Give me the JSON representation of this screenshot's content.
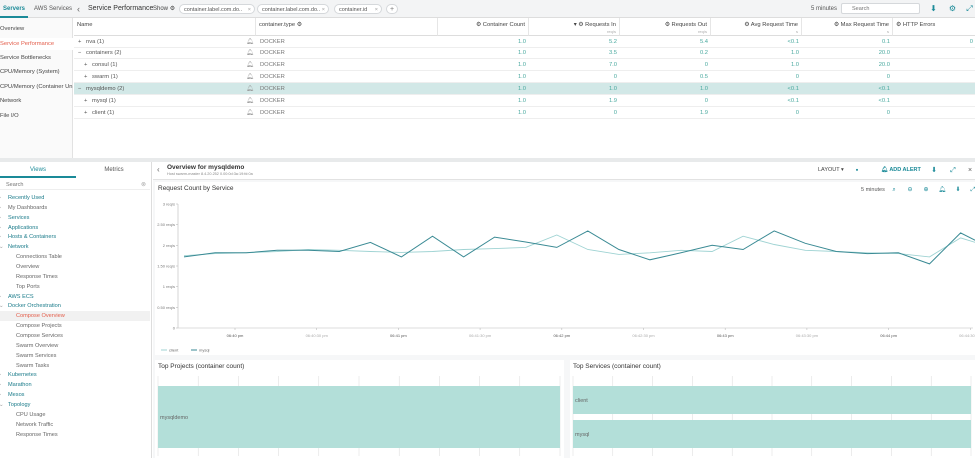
{
  "top": {
    "tabs": [
      {
        "label": "Servers"
      },
      {
        "label": "AWS Services"
      }
    ],
    "title": "Service Performance",
    "show_label": "Show",
    "chips": [
      {
        "label": "container.label.com.do.."
      },
      {
        "label": "container.label.com.do.."
      },
      {
        "label": "container.id"
      }
    ],
    "add_chip": "+",
    "time_range": "5 minutes",
    "search_placeholder": "Search"
  },
  "left_nav": {
    "items": [
      {
        "label": "Overview"
      },
      {
        "label": "Service Performance"
      },
      {
        "label": "Service Bottlenecks"
      },
      {
        "label": "CPU/Memory (System)"
      },
      {
        "label": "CPU/Memory (Container Un..."
      },
      {
        "label": "Network"
      },
      {
        "label": "File I/O"
      }
    ]
  },
  "table": {
    "columns": [
      {
        "label": "Name",
        "unit": ""
      },
      {
        "label": "container.type",
        "unit": ""
      },
      {
        "label": "Container Count",
        "unit": ""
      },
      {
        "label": "Requests In",
        "unit": "req/s"
      },
      {
        "label": "Requests Out",
        "unit": "req/s"
      },
      {
        "label": "Avg Request Time",
        "unit": "s"
      },
      {
        "label": "Max Request Time",
        "unit": "s"
      },
      {
        "label": "HTTP Errors",
        "unit": ""
      }
    ],
    "rows": [
      {
        "toggle": "+",
        "name": "nva (1)",
        "type": "DOCKER",
        "count": "1.0",
        "req_in": "5.2",
        "req_out": "5.4",
        "avg": "<0.1",
        "max": "0.1",
        "errors": "0"
      },
      {
        "toggle": "−",
        "name": "containers (2)",
        "type": "DOCKER",
        "count": "1.0",
        "req_in": "3.5",
        "req_out": "0.2",
        "avg": "1.0",
        "max": "20.0",
        "errors": ""
      },
      {
        "toggle": "+",
        "name": "consul (1)",
        "type": "DOCKER",
        "count": "1.0",
        "req_in": "7.0",
        "req_out": "0",
        "avg": "1.0",
        "max": "20.0",
        "errors": ""
      },
      {
        "toggle": "+",
        "name": "swarm (1)",
        "type": "DOCKER",
        "count": "1.0",
        "req_in": "0",
        "req_out": "0.5",
        "avg": "0",
        "max": "0",
        "errors": ""
      },
      {
        "toggle": "−",
        "name": "mysqldemo (2)",
        "type": "DOCKER",
        "count": "1.0",
        "req_in": "1.0",
        "req_out": "1.0",
        "avg": "<0.1",
        "max": "<0.1",
        "errors": ""
      },
      {
        "toggle": "+",
        "name": "mysql (1)",
        "type": "DOCKER",
        "count": "1.0",
        "req_in": "1.9",
        "req_out": "0",
        "avg": "<0.1",
        "max": "<0.1",
        "errors": ""
      },
      {
        "toggle": "+",
        "name": "client (1)",
        "type": "DOCKER",
        "count": "1.0",
        "req_in": "0",
        "req_out": "1.9",
        "avg": "0",
        "max": "0",
        "errors": ""
      }
    ]
  },
  "side_panel": {
    "tabs": [
      {
        "label": "Views"
      },
      {
        "label": "Metrics"
      }
    ],
    "search_placeholder": "Search",
    "tree": [
      {
        "label": "Recently Used",
        "level": "grp"
      },
      {
        "label": "My Dashboards",
        "level": "plain"
      },
      {
        "label": "Services",
        "level": "grp"
      },
      {
        "label": "Applications",
        "level": "grp"
      },
      {
        "label": "Hosts & Containers",
        "level": "grp"
      },
      {
        "label": "Network",
        "level": "grp"
      },
      {
        "label": "Connections Table",
        "level": "child"
      },
      {
        "label": "Overview",
        "level": "child"
      },
      {
        "label": "Response Times",
        "level": "child"
      },
      {
        "label": "Top Ports",
        "level": "child"
      },
      {
        "label": "AWS ECS",
        "level": "grp"
      },
      {
        "label": "Docker Orchestration",
        "level": "grp"
      },
      {
        "label": "Compose Overview",
        "level": "active"
      },
      {
        "label": "Compose Projects",
        "level": "child"
      },
      {
        "label": "Compose Services",
        "level": "child"
      },
      {
        "label": "Swarm Overview",
        "level": "child"
      },
      {
        "label": "Swarm Services",
        "level": "child"
      },
      {
        "label": "Swarm Tasks",
        "level": "child"
      },
      {
        "label": "Kubernetes",
        "level": "grp"
      },
      {
        "label": "Marathon",
        "level": "grp"
      },
      {
        "label": "Mesos",
        "level": "grp"
      },
      {
        "label": "Topology",
        "level": "grp"
      },
      {
        "label": "CPU Usage",
        "level": "child"
      },
      {
        "label": "Network Traffic",
        "level": "child"
      },
      {
        "label": "Response Times",
        "level": "child"
      }
    ]
  },
  "overview": {
    "title": "Overview for mysqldemo",
    "subtitle": "Host swarm-master 8.4.20.252 0.00:0d:3a:19:fd:0a",
    "layout_label": "LAYOUT",
    "add_alert_label": "ADD ALERT"
  },
  "chart_data": [
    {
      "type": "line",
      "title": "Request Count by Service",
      "time_range": "5 minutes",
      "ylim": [
        0,
        3
      ],
      "yticks": [
        {
          "v": 0,
          "label": "0"
        },
        {
          "v": 0.5,
          "label": "0.50 req/s"
        },
        {
          "v": 1,
          "label": "1 req/s"
        },
        {
          "v": 1.5,
          "label": "1.50 req/s"
        },
        {
          "v": 2,
          "label": "2 req/s"
        },
        {
          "v": 2.5,
          "label": "2.50 req/s"
        },
        {
          "v": 3,
          "label": "3 req/s"
        }
      ],
      "x": [
        "06:40 pm",
        "06:40:10",
        "06:40:20",
        "06:40:30",
        "06:40:40",
        "06:40:50",
        "06:41 pm",
        "06:41:10",
        "06:41:20",
        "06:41:30",
        "06:41:40",
        "06:41:50",
        "06:42 pm",
        "06:42:10",
        "06:42:20",
        "06:42:30",
        "06:42:40",
        "06:42:50",
        "06:43 pm",
        "06:43:10",
        "06:43:20",
        "06:43:30",
        "06:43:40",
        "06:43:50",
        "06:44 pm",
        "06:44:10",
        "06:44:20"
      ],
      "xticks": [
        "06:40 pm",
        "06:40:30 pm",
        "06:41 pm",
        "06:41:30 pm",
        "06:42 pm",
        "06:42:30 pm",
        "06:43 pm",
        "06:43:30 pm",
        "06:44 pm",
        "06:44:30 pm"
      ],
      "series": [
        {
          "name": "client",
          "color": "#9fd3d3",
          "values": [
            1.75,
            1.8,
            1.82,
            1.85,
            1.9,
            1.88,
            1.85,
            1.83,
            1.85,
            1.9,
            1.92,
            1.95,
            2.25,
            1.9,
            1.78,
            1.82,
            1.88,
            1.85,
            2.22,
            2.02,
            1.88,
            1.85,
            1.82,
            1.8,
            1.72,
            2.18,
            1.95
          ]
        },
        {
          "name": "mysql",
          "color": "#3a8a94",
          "values": [
            1.72,
            1.82,
            1.82,
            1.88,
            1.88,
            1.85,
            2.07,
            1.72,
            2.22,
            1.72,
            2.2,
            2.08,
            1.95,
            2.35,
            1.9,
            1.65,
            1.82,
            2.0,
            1.9,
            2.35,
            2.05,
            1.85,
            1.8,
            1.82,
            1.55,
            2.3,
            1.92
          ]
        }
      ]
    },
    {
      "type": "bar",
      "title": "Top Projects (container count)",
      "categories": [
        "mysqldemo"
      ],
      "values": [
        2
      ],
      "color": "#b3dfd9"
    },
    {
      "type": "bar",
      "title": "Top Services (container count)",
      "categories": [
        "client",
        "mysql"
      ],
      "values": [
        1,
        1
      ],
      "color": "#b3dfd9"
    }
  ]
}
